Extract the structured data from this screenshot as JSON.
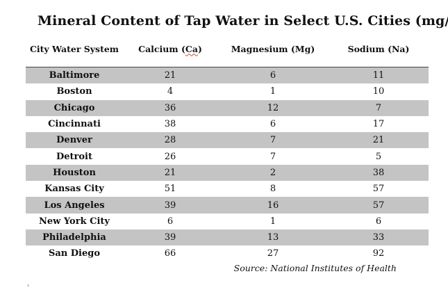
{
  "title": "Mineral Content of Tap Water in Select U.S. Cities (mg/L)",
  "table": {
    "headers": {
      "city": "City Water System",
      "calcium_prefix": "Calcium (",
      "calcium_symbol": "Ca",
      "calcium_suffix": ")",
      "magnesium": "Magnesium (Mg)",
      "sodium": "Sodium (Na)"
    },
    "rows": [
      {
        "city": "Baltimore",
        "calcium": "21",
        "magnesium": "6",
        "sodium": "11"
      },
      {
        "city": "Boston",
        "calcium": "4",
        "magnesium": "1",
        "sodium": "10"
      },
      {
        "city": "Chicago",
        "calcium": "36",
        "magnesium": "12",
        "sodium": "7"
      },
      {
        "city": "Cincinnati",
        "calcium": "38",
        "magnesium": "6",
        "sodium": "17"
      },
      {
        "city": "Denver",
        "calcium": "28",
        "magnesium": "7",
        "sodium": "21"
      },
      {
        "city": "Detroit",
        "calcium": "26",
        "magnesium": "7",
        "sodium": "5"
      },
      {
        "city": "Houston",
        "calcium": "21",
        "magnesium": "2",
        "sodium": "38"
      },
      {
        "city": "Kansas City",
        "calcium": "51",
        "magnesium": "8",
        "sodium": "57"
      },
      {
        "city": "Los Angeles",
        "calcium": "39",
        "magnesium": "16",
        "sodium": "57"
      },
      {
        "city": "New York City",
        "calcium": "6",
        "magnesium": "1",
        "sodium": "6"
      },
      {
        "city": "Philadelphia",
        "calcium": "39",
        "magnesium": "13",
        "sodium": "33"
      },
      {
        "city": "San Diego",
        "calcium": "66",
        "magnesium": "27",
        "sodium": "92"
      }
    ]
  },
  "source": "Source: National Institutes of Health",
  "colors": {
    "shaded_row": "#c4c4c4",
    "text": "#111111",
    "spellcheck_underline": "#d04040"
  }
}
